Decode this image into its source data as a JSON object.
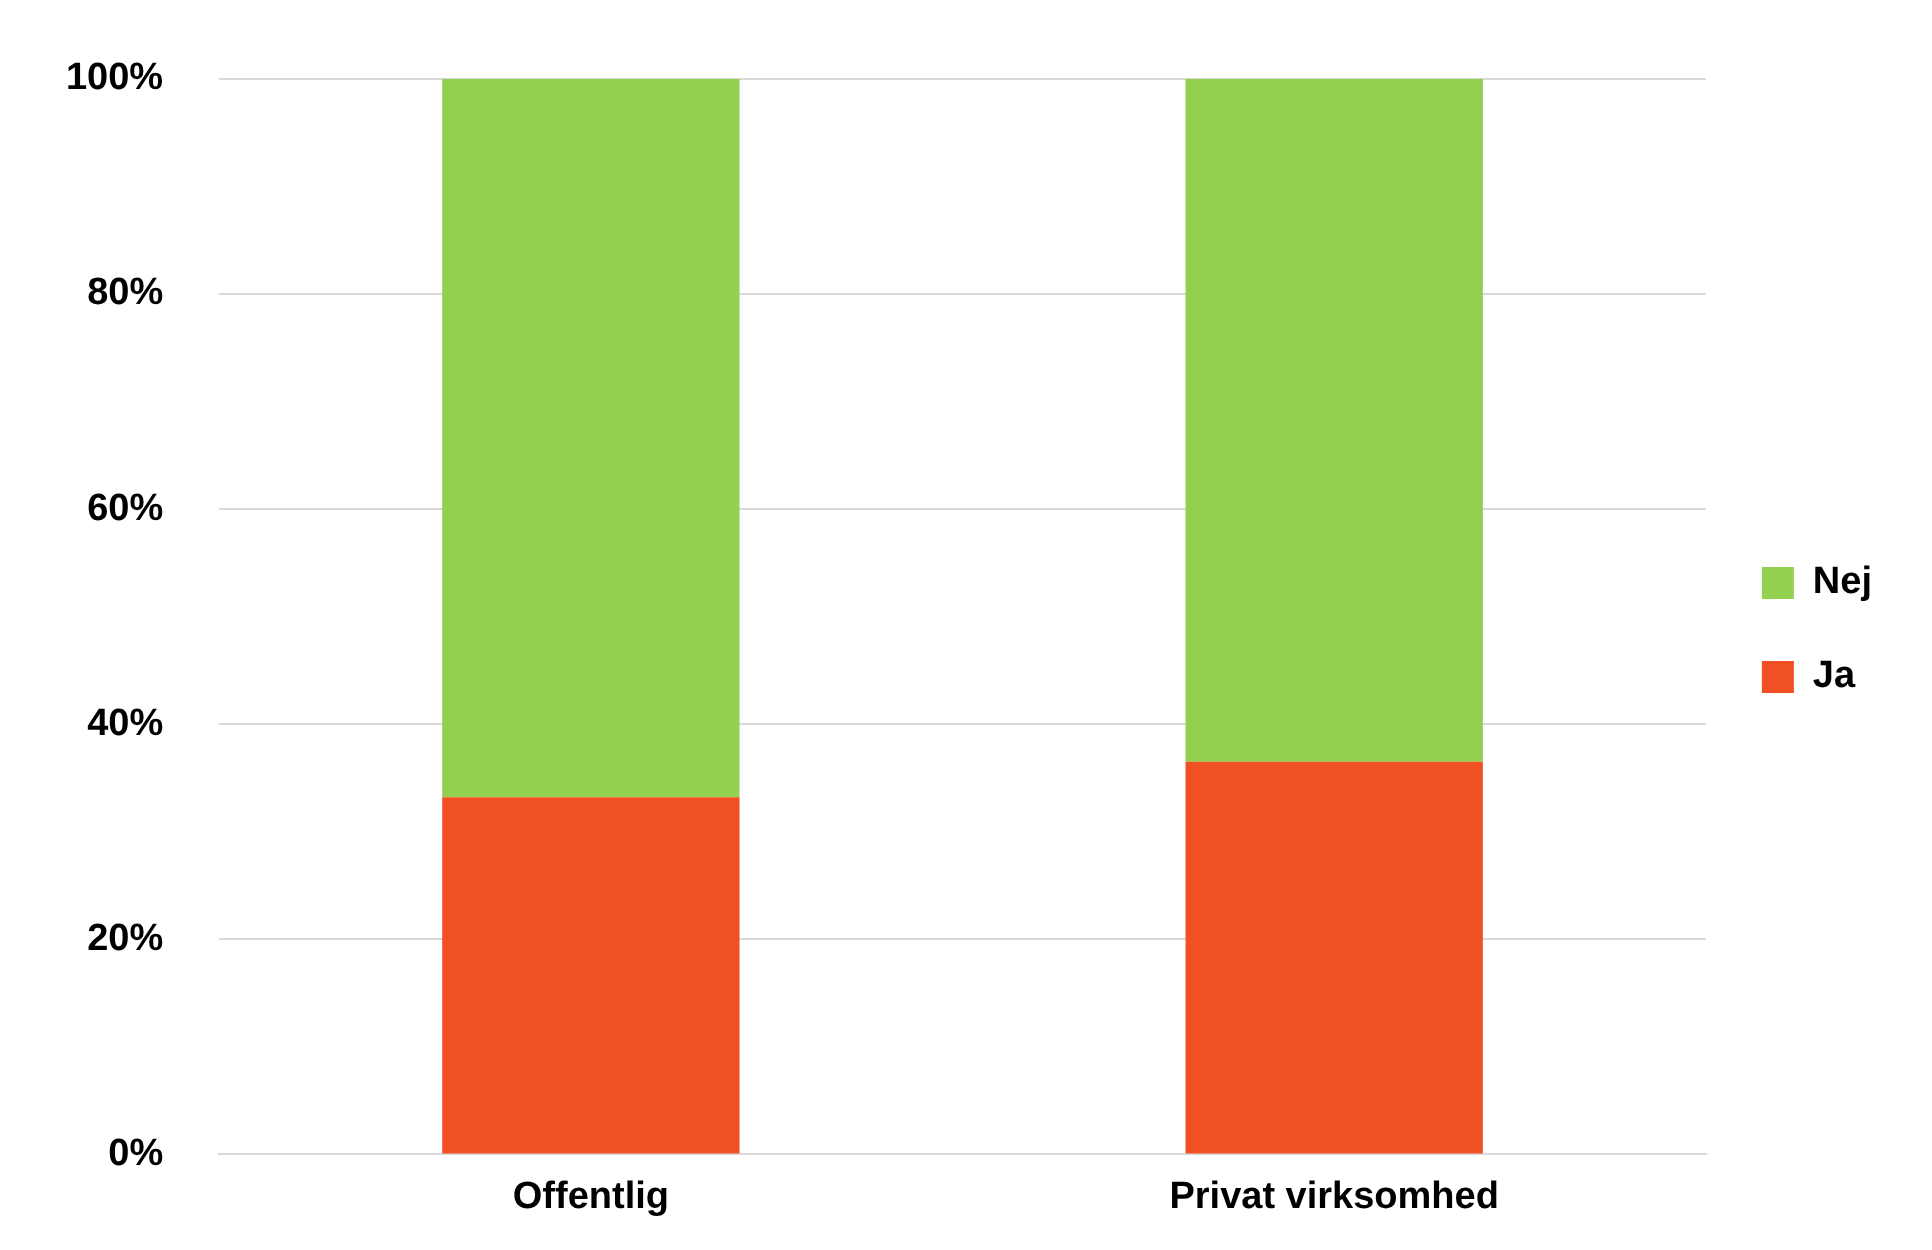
{
  "chart_data": {
    "type": "bar",
    "stacked": true,
    "categories": [
      "Offentlig",
      "Privat virksomhed"
    ],
    "series": [
      {
        "name": "Ja",
        "color": "#f05023",
        "values": [
          33.2,
          36.5
        ]
      },
      {
        "name": "Nej",
        "color": "#92d050",
        "values": [
          66.8,
          63.5
        ]
      }
    ],
    "ylim": [
      0,
      100
    ],
    "yticks": [
      {
        "value": 0,
        "label": "0%"
      },
      {
        "value": 20,
        "label": "20%"
      },
      {
        "value": 40,
        "label": "40%"
      },
      {
        "value": 60,
        "label": "60%"
      },
      {
        "value": 80,
        "label": "80%"
      },
      {
        "value": 100,
        "label": "100%"
      }
    ],
    "grid": "y",
    "legend": "right"
  }
}
